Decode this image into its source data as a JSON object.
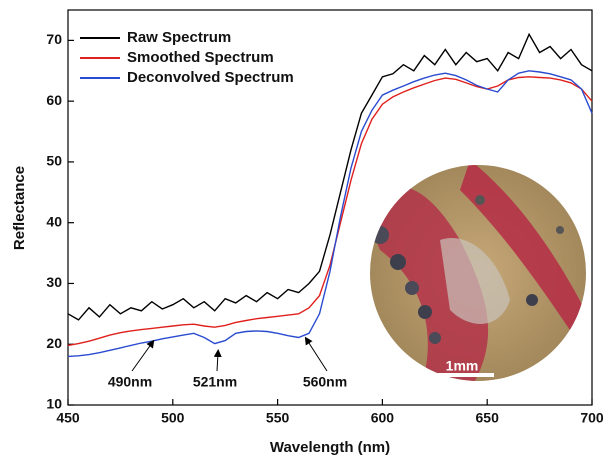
{
  "chart_data": {
    "type": "line",
    "x_label": "Wavelength (nm)",
    "y_label": "Reflectance",
    "x": [
      450,
      455,
      460,
      465,
      470,
      475,
      480,
      485,
      490,
      495,
      500,
      505,
      510,
      515,
      520,
      525,
      530,
      535,
      540,
      545,
      550,
      555,
      560,
      565,
      570,
      575,
      580,
      585,
      590,
      595,
      600,
      605,
      610,
      615,
      620,
      625,
      630,
      635,
      640,
      645,
      650,
      655,
      660,
      665,
      670,
      675,
      680,
      685,
      690,
      695,
      700
    ],
    "series": [
      {
        "name": "Raw Spectrum",
        "color": "#000000",
        "values": [
          25,
          24,
          26,
          24.5,
          26.5,
          25,
          26,
          25.5,
          27,
          25.8,
          26.5,
          27.5,
          26,
          27,
          25.5,
          27.5,
          26.8,
          28,
          27,
          28.5,
          27.5,
          29,
          28.5,
          30,
          32,
          38,
          45,
          52,
          58,
          61,
          64,
          64.5,
          66,
          65,
          67.5,
          66,
          68.5,
          66,
          68,
          66.5,
          67,
          65,
          68,
          67,
          71,
          68,
          69,
          67,
          68.5,
          66,
          65
        ]
      },
      {
        "name": "Smoothed Spectrum",
        "color": "#e0201c",
        "values": [
          19.8,
          20.1,
          20.5,
          21,
          21.5,
          21.9,
          22.2,
          22.4,
          22.6,
          22.8,
          23,
          23.2,
          23.3,
          23,
          22.8,
          23.1,
          23.6,
          23.9,
          24.2,
          24.4,
          24.6,
          24.8,
          25,
          26,
          28,
          33,
          40,
          47,
          53,
          57,
          59.5,
          60.7,
          61.5,
          62.2,
          62.8,
          63.4,
          63.8,
          63.6,
          63,
          62.4,
          62,
          62.5,
          63.5,
          63.9,
          64,
          63.9,
          63.8,
          63.5,
          63,
          62,
          60
        ]
      },
      {
        "name": "Deconvolved Spectrum",
        "color": "#2a4bd0",
        "values": [
          18,
          18.1,
          18.3,
          18.6,
          19,
          19.4,
          19.8,
          20.2,
          20.5,
          20.9,
          21.2,
          21.5,
          21.8,
          21.1,
          20.1,
          20.6,
          21.8,
          22.1,
          22.2,
          22.1,
          21.8,
          21.4,
          21.1,
          21.8,
          25,
          32,
          41,
          49,
          55,
          58.5,
          61,
          61.8,
          62.5,
          63.2,
          63.8,
          64.3,
          64.6,
          64.2,
          63.5,
          62.6,
          62,
          61.5,
          63.5,
          64.6,
          65,
          64.8,
          64.5,
          64,
          63.5,
          62,
          58
        ]
      }
    ],
    "xlim": [
      450,
      700
    ],
    "xticks": [
      450,
      500,
      550,
      600,
      650,
      700
    ],
    "ylim": [
      10,
      75
    ],
    "yticks": [
      10,
      20,
      30,
      40,
      50,
      60,
      70
    ],
    "legend": "upper left",
    "annotations": [
      "490nm",
      "521nm",
      "560nm"
    ],
    "inset_label": "1mm"
  }
}
